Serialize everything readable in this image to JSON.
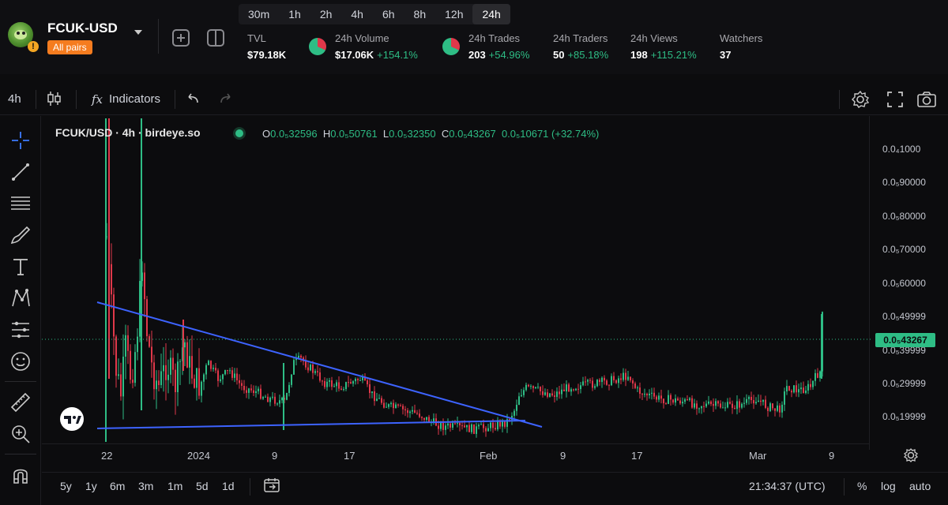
{
  "header": {
    "pair_title": "FCUK-USD",
    "pair_tag": "All pairs",
    "timeframes": [
      "30m",
      "1h",
      "2h",
      "4h",
      "6h",
      "8h",
      "12h",
      "24h"
    ],
    "active_timeframe": "24h",
    "stats": {
      "tvl": {
        "label": "TVL",
        "value": "$79.18K"
      },
      "volume": {
        "label": "24h Volume",
        "value": "$17.06K",
        "change": "+154.1%"
      },
      "trades": {
        "label": "24h Trades",
        "value": "203",
        "change": "+54.96%"
      },
      "traders": {
        "label": "24h Traders",
        "value": "50",
        "change": "+85.18%"
      },
      "views": {
        "label": "24h Views",
        "value": "198",
        "change": "+115.21%"
      },
      "watchers": {
        "label": "Watchers",
        "value": "37"
      }
    }
  },
  "toolbar": {
    "interval": "4h",
    "indicators_label": "Indicators",
    "fx_label": "fx"
  },
  "chart": {
    "legend": "FCUK/USD · 4h · birdeye.so",
    "ohlc": {
      "o_label": "O",
      "o": "0.0₅32596",
      "h_label": "H",
      "h": "0.0₅50761",
      "l_label": "L",
      "l": "0.0₅32350",
      "c_label": "C",
      "c": "0.0₅43267",
      "change": "0.0₅10671 (+32.74%)"
    },
    "price_axis": [
      "0.0₄1000",
      "0.0₅90000",
      "0.0₅80000",
      "0.0₅70000",
      "0.0₅60000",
      "0.0₅49999",
      "0.0₅39999",
      "0.0₅29999",
      "0.0₅19999"
    ],
    "current_price": "0.0₅43267",
    "time_axis": [
      "22",
      "2024",
      "9",
      "17",
      "Feb",
      "9",
      "17",
      "Mar",
      "9"
    ],
    "colors": {
      "up": "#2ebd85",
      "down": "#e0384a",
      "trendline": "#3d63ff"
    }
  },
  "bottom": {
    "ranges": [
      "5y",
      "1y",
      "6m",
      "3m",
      "1m",
      "5d",
      "1d"
    ],
    "clock": "21:34:37 (UTC)",
    "percent_label": "%",
    "log_label": "log",
    "auto_label": "auto"
  }
}
